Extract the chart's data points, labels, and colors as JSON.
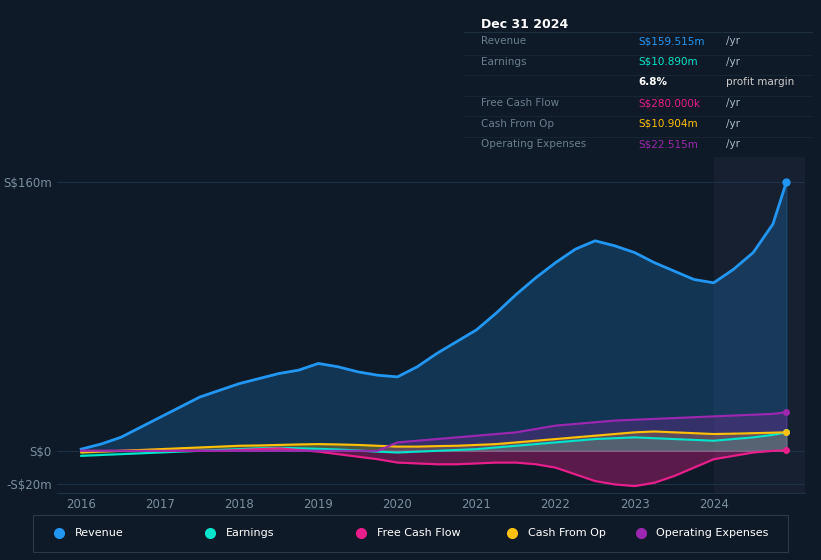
{
  "bg_color": "#0e1a27",
  "plot_bg_color": "#0e1a27",
  "grid_color": "#1e3347",
  "text_color": "#7a8fa0",
  "years": [
    2016,
    2016.25,
    2016.5,
    2016.75,
    2017,
    2017.25,
    2017.5,
    2017.75,
    2018,
    2018.25,
    2018.5,
    2018.75,
    2019,
    2019.25,
    2019.5,
    2019.75,
    2020,
    2020.25,
    2020.5,
    2020.75,
    2021,
    2021.25,
    2021.5,
    2021.75,
    2022,
    2022.25,
    2022.5,
    2022.75,
    2023,
    2023.25,
    2023.5,
    2023.75,
    2024,
    2024.25,
    2024.5,
    2024.75,
    2024.92
  ],
  "revenue": [
    1,
    4,
    8,
    14,
    20,
    26,
    32,
    36,
    40,
    43,
    46,
    48,
    52,
    50,
    47,
    45,
    44,
    50,
    58,
    65,
    72,
    82,
    93,
    103,
    112,
    120,
    125,
    122,
    118,
    112,
    107,
    102,
    100,
    108,
    118,
    135,
    160
  ],
  "earnings": [
    -3,
    -2.5,
    -2,
    -1.5,
    -1,
    -0.5,
    0,
    0.5,
    1,
    1.5,
    1.8,
    1.5,
    1.2,
    0.8,
    0.2,
    -0.5,
    -1,
    -0.5,
    0,
    0.5,
    1,
    2,
    3,
    4,
    5,
    6,
    7,
    7.5,
    8,
    7.5,
    7,
    6.5,
    6,
    7,
    8,
    9.5,
    11
  ],
  "free_cash_flow": [
    0,
    0,
    0,
    0,
    0,
    0,
    0,
    0,
    0.5,
    1,
    1.5,
    0.5,
    -0.5,
    -2,
    -3.5,
    -5,
    -7,
    -7.5,
    -8,
    -8,
    -7.5,
    -7,
    -7,
    -8,
    -10,
    -14,
    -18,
    -20,
    -21,
    -19,
    -15,
    -10,
    -5,
    -3,
    -1,
    0,
    0.3
  ],
  "cash_from_op": [
    -1,
    -0.5,
    0,
    0.5,
    1,
    1.5,
    2,
    2.5,
    3,
    3.2,
    3.5,
    3.8,
    4,
    3.8,
    3.5,
    3,
    2.5,
    2.5,
    2.8,
    3,
    3.5,
    4,
    5,
    6,
    7,
    8,
    9,
    10,
    11,
    11.5,
    11,
    10.5,
    10,
    10.2,
    10.5,
    10.8,
    11
  ],
  "operating_expenses": [
    0,
    0,
    0,
    0,
    0,
    0,
    0,
    0,
    0,
    0,
    0,
    0,
    0,
    0,
    0,
    0,
    5,
    6,
    7,
    8,
    9,
    10,
    11,
    13,
    15,
    16,
    17,
    18,
    18.5,
    19,
    19.5,
    20,
    20.5,
    21,
    21.5,
    22,
    23
  ],
  "revenue_color": "#2196f3",
  "earnings_color": "#00e5cc",
  "fcf_color": "#e91e8c",
  "cfop_color": "#ffc107",
  "opex_color": "#9c27b0",
  "ylim_min": -25,
  "ylim_max": 175,
  "yticks": [
    -20,
    0,
    160
  ],
  "ytick_labels": [
    "-S$20m",
    "S$0",
    "S$160m"
  ],
  "xticks": [
    2016,
    2017,
    2018,
    2019,
    2020,
    2021,
    2022,
    2023,
    2024
  ],
  "info_title": "Dec 31 2024",
  "info_rows": [
    {
      "label": "Revenue",
      "value": "S$159.515m",
      "unit": "/yr",
      "value_color": "#2196f3"
    },
    {
      "label": "Earnings",
      "value": "S$10.890m",
      "unit": "/yr",
      "value_color": "#00e5cc"
    },
    {
      "label": "",
      "value": "6.8%",
      "unit": "profit margin",
      "value_color": "#ffffff",
      "bold_value": true
    },
    {
      "label": "Free Cash Flow",
      "value": "S$280.000k",
      "unit": "/yr",
      "value_color": "#e91e8c"
    },
    {
      "label": "Cash From Op",
      "value": "S$10.904m",
      "unit": "/yr",
      "value_color": "#ffc107"
    },
    {
      "label": "Operating Expenses",
      "value": "S$22.515m",
      "unit": "/yr",
      "value_color": "#9c27b0"
    }
  ],
  "legend_items": [
    {
      "label": "Revenue",
      "color": "#2196f3"
    },
    {
      "label": "Earnings",
      "color": "#00e5cc"
    },
    {
      "label": "Free Cash Flow",
      "color": "#e91e8c"
    },
    {
      "label": "Cash From Op",
      "color": "#ffc107"
    },
    {
      "label": "Operating Expenses",
      "color": "#9c27b0"
    }
  ]
}
